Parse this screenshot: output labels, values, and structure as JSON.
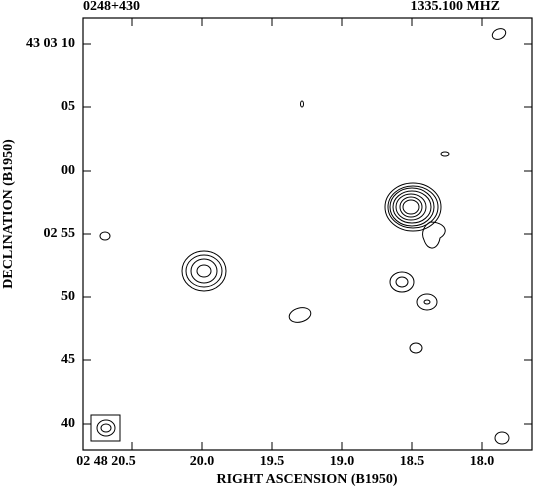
{
  "header": {
    "source": "0248+430",
    "frequency": "1335.100 MHZ"
  },
  "x_axis": {
    "label": "RIGHT ASCENSION (B1950)",
    "ticks": [
      "02 48 20.5",
      "20.0",
      "19.5",
      "19.0",
      "18.5",
      "18.0"
    ]
  },
  "y_axis": {
    "label": "DECLINATION (B1950)",
    "ticks": [
      "43 03 10",
      "05",
      "00",
      "02 55",
      "50",
      "45",
      "40"
    ]
  }
}
